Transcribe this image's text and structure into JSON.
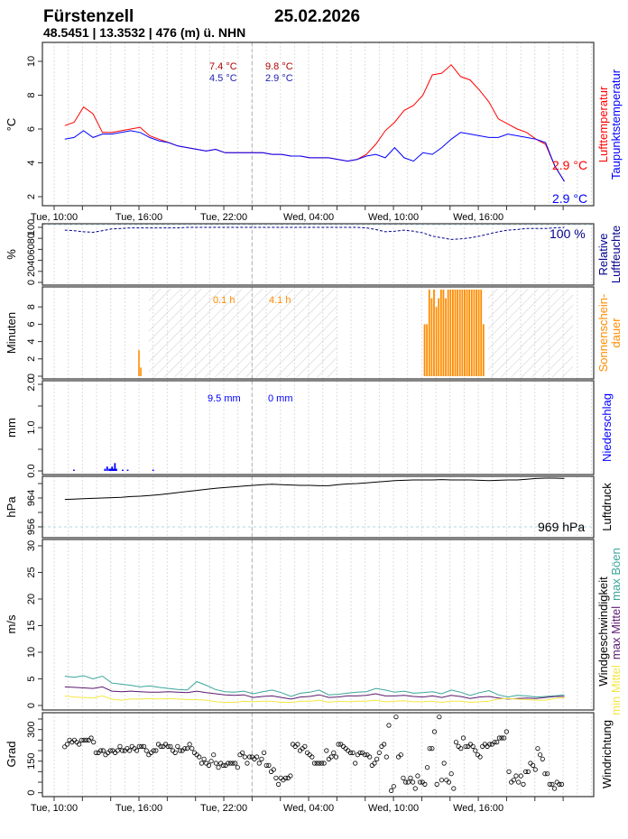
{
  "header": {
    "station": "Fürstenzell",
    "date": "25.02.2026",
    "location": "48.5451 | 13.3532 | 476 (m) ü. NHN"
  },
  "colors": {
    "temp": "#ff0000",
    "dew": "#0000ff",
    "temp_note": "#b00000",
    "dew_note": "#2020b0",
    "humidity": "#00008b",
    "sun": "#ff8c00",
    "precip": "#0000ff",
    "pressure": "#000000",
    "gust": "#3aa59a",
    "max_mean": "#5b1a6e",
    "min_mean": "#f5e642",
    "dir": "#000000"
  },
  "chart_data": {
    "type": "line",
    "time_axis": {
      "unit": "hours since Tue 00:00",
      "range": [
        9.2,
        48.2
      ],
      "tick_labels": [
        {
          "h": 10,
          "label": "Tue, 10:00"
        },
        {
          "h": 16,
          "label": "Tue, 16:00"
        },
        {
          "h": 22,
          "label": "Tue, 22:00"
        },
        {
          "h": 28,
          "label": "Wed, 04:00"
        },
        {
          "h": 34,
          "label": "Wed, 10:00"
        },
        {
          "h": 40,
          "label": "Wed, 16:00"
        }
      ],
      "midnight_marker": 24
    },
    "series_start_h": 10.75,
    "series_step_h": 0.6667,
    "temperature": {
      "ylabel": "°C",
      "ylim": [
        1.5,
        10.6
      ],
      "ticks": [
        2,
        4,
        6,
        8,
        10
      ],
      "legend": [
        "Lufttemperatur",
        "Taupunktstemperatur"
      ],
      "notes": {
        "temp_prev": "7.4 °C",
        "temp_curr": "9.8 °C",
        "dew_prev": "4.5 °C",
        "dew_curr": "2.9 °C"
      },
      "current": {
        "temp": "2.9 °C",
        "dew": "2.9 °C"
      },
      "air": [
        6.2,
        6.4,
        7.3,
        6.9,
        5.8,
        5.8,
        5.9,
        6.0,
        6.1,
        5.6,
        5.4,
        5.2,
        5.0,
        4.9,
        4.8,
        4.7,
        4.8,
        4.6,
        4.6,
        4.6,
        4.6,
        4.6,
        4.5,
        4.5,
        4.4,
        4.4,
        4.3,
        4.3,
        4.3,
        4.2,
        4.1,
        4.2,
        4.5,
        5.1,
        5.9,
        6.4,
        7.1,
        7.4,
        8.0,
        9.2,
        9.3,
        9.8,
        9.1,
        8.9,
        8.3,
        7.6,
        6.6,
        6.3,
        6.0,
        5.8,
        5.4,
        5.1,
        3.8,
        2.9
      ],
      "dewpoint": [
        5.4,
        5.5,
        5.9,
        5.5,
        5.7,
        5.7,
        5.8,
        5.9,
        5.8,
        5.5,
        5.3,
        5.2,
        5.0,
        4.9,
        4.8,
        4.7,
        4.8,
        4.6,
        4.6,
        4.6,
        4.6,
        4.6,
        4.5,
        4.5,
        4.4,
        4.4,
        4.3,
        4.3,
        4.3,
        4.2,
        4.1,
        4.2,
        4.4,
        4.5,
        4.3,
        4.9,
        4.3,
        4.1,
        4.6,
        4.5,
        4.9,
        5.4,
        5.8,
        5.7,
        5.6,
        5.5,
        5.5,
        5.7,
        5.6,
        5.5,
        5.4,
        5.2,
        3.8,
        2.9
      ]
    },
    "humidity": {
      "ylabel": "%",
      "ylim": [
        0,
        105
      ],
      "ticks": [
        0,
        20,
        40,
        60,
        80,
        100
      ],
      "legend": [
        "Relative",
        "Luftfeuchte"
      ],
      "current": "100 %",
      "values": [
        95,
        94,
        92,
        91,
        94,
        97,
        98,
        99,
        99,
        99,
        99,
        99,
        99,
        100,
        100,
        100,
        100,
        100,
        100,
        100,
        100,
        100,
        100,
        100,
        100,
        100,
        100,
        100,
        100,
        100,
        100,
        100,
        99,
        96,
        92,
        93,
        95,
        93,
        90,
        84,
        81,
        78,
        79,
        81,
        84,
        88,
        92,
        95,
        96,
        98,
        98,
        98,
        99,
        100
      ]
    },
    "sunshine": {
      "ylabel": "Minuten",
      "ylim": [
        0,
        10.3
      ],
      "ticks": [
        0,
        2,
        4,
        6,
        8
      ],
      "legend": [
        "Sonnenschein-",
        "dauer"
      ],
      "notes": {
        "prev": "0.1 h",
        "curr": "4.1 h"
      },
      "night": [
        [
          16.7,
          30.0
        ],
        [
          40.7,
          46.7
        ]
      ],
      "bars": [
        [
          16.0,
          3
        ],
        [
          16.13,
          1
        ]
      ],
      "block_start_h": 36.2,
      "block_step_h": 0.1667,
      "block": [
        6,
        6,
        10,
        9,
        10,
        8,
        9,
        10,
        10,
        9,
        10,
        10,
        10,
        10,
        10,
        10,
        10,
        10,
        10,
        10,
        10,
        10,
        10,
        10,
        10,
        6
      ]
    },
    "precipitation": {
      "ylabel": "mm",
      "ylim": [
        0,
        2.0
      ],
      "ticks": [
        0.0,
        1.0,
        2.0
      ],
      "tick_labels": [
        "0.0",
        "1.0",
        "2.0"
      ],
      "legend": "Niederschlag",
      "notes": {
        "prev": "9.5 mm",
        "curr": "0 mm"
      },
      "bars": [
        [
          11.4,
          0.03
        ],
        [
          13.6,
          0.05
        ],
        [
          13.75,
          0.1
        ],
        [
          13.9,
          0.05
        ],
        [
          14.0,
          0.05
        ],
        [
          14.1,
          0.1
        ],
        [
          14.2,
          0.05
        ],
        [
          14.3,
          0.18
        ],
        [
          14.4,
          0.05
        ],
        [
          14.85,
          0.03
        ],
        [
          15.2,
          0.03
        ],
        [
          17.0,
          0.03
        ]
      ]
    },
    "pressure": {
      "ylabel": "hPa",
      "ylim": [
        955,
        971
      ],
      "ticks": [
        956,
        960,
        964,
        968
      ],
      "tick_labels": [
        "956",
        "964"
      ],
      "legend": "Luftdruck",
      "current": "969 hPa",
      "reference": 956,
      "values": [
        963.6,
        963.7,
        963.8,
        963.9,
        964.0,
        964.1,
        964.2,
        964.4,
        964.5,
        964.7,
        964.9,
        965.2,
        965.5,
        965.8,
        966.1,
        966.4,
        966.7,
        966.9,
        967.1,
        967.3,
        967.5,
        967.7,
        967.8,
        967.7,
        967.6,
        967.5,
        967.5,
        967.4,
        967.4,
        967.7,
        967.9,
        968.0,
        968.2,
        968.4,
        968.6,
        968.8,
        968.9,
        969.0,
        969.0,
        969.0,
        969.1,
        969.0,
        969.0,
        969.0,
        968.9,
        968.8,
        968.9,
        969.0,
        969.0,
        969.2,
        969.4,
        969.5,
        969.5,
        969.4
      ]
    },
    "wind": {
      "ylabel": "m/s",
      "ylim": [
        -0.8,
        30.5
      ],
      "ticks": [
        0,
        5,
        10,
        15,
        20,
        25,
        30
      ],
      "title": "Windgeschwindigkeit",
      "legend": [
        "min Mittel",
        "max Mittel",
        "max Böen"
      ],
      "gust": [
        5.5,
        5.3,
        5.6,
        5.0,
        5.5,
        4.2,
        4.0,
        3.8,
        3.5,
        3.7,
        3.4,
        3.2,
        3.0,
        2.9,
        4.5,
        3.8,
        3.0,
        2.6,
        2.5,
        2.7,
        2.2,
        2.6,
        2.9,
        2.4,
        1.7,
        2.3,
        2.5,
        2.9,
        2.0,
        2.1,
        2.3,
        2.5,
        2.6,
        3.2,
        2.9,
        2.5,
        2.7,
        2.3,
        2.4,
        2.6,
        2.2,
        2.9,
        2.5,
        1.9,
        2.4,
        2.8,
        2.0,
        1.6,
        1.9,
        1.8,
        1.6,
        1.7,
        1.8,
        2.0
      ],
      "max_mean": [
        3.5,
        3.4,
        3.3,
        3.2,
        3.5,
        2.7,
        2.6,
        2.7,
        2.6,
        2.5,
        2.5,
        2.6,
        2.5,
        2.4,
        2.7,
        2.4,
        2.2,
        2.0,
        1.9,
        2.0,
        1.5,
        1.7,
        1.8,
        1.5,
        1.2,
        1.6,
        1.7,
        2.0,
        1.5,
        1.6,
        1.8,
        1.8,
        1.9,
        2.2,
        1.8,
        1.8,
        1.9,
        1.7,
        1.6,
        1.8,
        1.5,
        1.9,
        1.7,
        1.3,
        1.6,
        1.7,
        1.4,
        1.2,
        1.3,
        1.4,
        1.3,
        1.5,
        1.7,
        1.7
      ],
      "min_mean": [
        1.8,
        1.6,
        1.5,
        1.4,
        1.8,
        1.2,
        1.0,
        1.2,
        1.2,
        1.3,
        1.2,
        1.3,
        1.2,
        1.1,
        1.1,
        1.0,
        0.7,
        0.6,
        0.6,
        0.8,
        0.7,
        0.8,
        0.8,
        0.6,
        0.6,
        0.8,
        0.8,
        1.0,
        0.6,
        0.8,
        0.7,
        0.8,
        0.8,
        1.0,
        0.7,
        0.8,
        0.9,
        0.7,
        0.7,
        0.8,
        0.6,
        0.8,
        0.8,
        0.6,
        0.7,
        0.8,
        1.2,
        1.3,
        1.2,
        1.1,
        1.0,
        1.0,
        1.3,
        1.5
      ]
    },
    "direction": {
      "ylabel": "Grad",
      "ylim": [
        -10,
        380
      ],
      "ticks": [
        0,
        50,
        100,
        150,
        200,
        250,
        300,
        350
      ],
      "tick_labels": [
        "0",
        "150",
        "300"
      ],
      "legend": "Windrichtung",
      "start_h": 10.75,
      "end_h": 45.9,
      "values": [
        218,
        230,
        250,
        240,
        250,
        240,
        230,
        250,
        250,
        250,
        250,
        260,
        240,
        190,
        190,
        200,
        200,
        180,
        190,
        200,
        200,
        190,
        200,
        220,
        200,
        200,
        210,
        200,
        220,
        210,
        200,
        220,
        220,
        220,
        200,
        180,
        190,
        200,
        200,
        230,
        220,
        220,
        230,
        220,
        220,
        200,
        190,
        220,
        200,
        200,
        210,
        210,
        230,
        210,
        190,
        180,
        170,
        140,
        160,
        140,
        130,
        150,
        180,
        140,
        120,
        140,
        130,
        130,
        140,
        140,
        140,
        140,
        120,
        180,
        190,
        170,
        140,
        170,
        170,
        160,
        170,
        140,
        160,
        190,
        130,
        130,
        100,
        110,
        70,
        40,
        70,
        60,
        70,
        70,
        80,
        230,
        220,
        230,
        200,
        210,
        220,
        190,
        180,
        170,
        140,
        140,
        140,
        140,
        140,
        200,
        160,
        170,
        190,
        170,
        230,
        230,
        220,
        210,
        200,
        190,
        190,
        140,
        180,
        190,
        190,
        180,
        180,
        170,
        130,
        140,
        160,
        190,
        220,
        230,
        170,
        320,
        10,
        30,
        360,
        170,
        180,
        70,
        50,
        50,
        70,
        50,
        20,
        80,
        50,
        50,
        40,
        120,
        210,
        210,
        290,
        40,
        360,
        60,
        140,
        60,
        50,
        90,
        20,
        240,
        220,
        210,
        260,
        220,
        220,
        230,
        220,
        200,
        180,
        170,
        220,
        230,
        220,
        230,
        230,
        240,
        240,
        260,
        260,
        260,
        290,
        100,
        50,
        60,
        80,
        50,
        80,
        40,
        100,
        100,
        140,
        130,
        110,
        210,
        180,
        160,
        90,
        90,
        40,
        40,
        20,
        50,
        40,
        40
      ]
    }
  }
}
